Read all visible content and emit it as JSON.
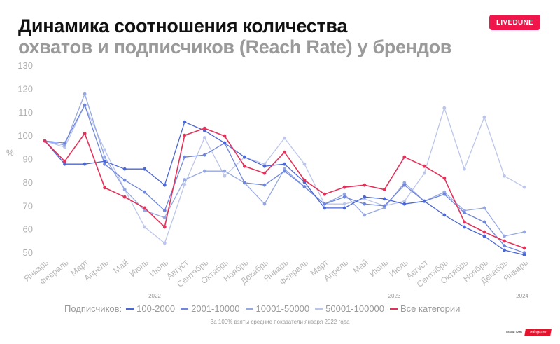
{
  "header": {
    "title_line1": "Динамика соотношения количества",
    "title_line2": "охватов и подписчиков (Reach Rate) у брендов",
    "brand_badge": "LIVEDUNE",
    "brand_color": "#f0154a"
  },
  "footer": {
    "note": "За 100% взяты средние показатели января 2022 года",
    "made_with": "Made with",
    "made_with_logo": "infogram"
  },
  "legend": {
    "label": "Подписчиков:"
  },
  "chart_data": {
    "type": "line",
    "title": "Динамика соотношения количества охватов и подписчиков (Reach Rate) у брендов",
    "xlabel": "",
    "ylabel": "%",
    "ylim": [
      50,
      130
    ],
    "yticks": [
      130,
      120,
      110,
      100,
      90,
      80,
      70,
      60,
      50
    ],
    "grid": false,
    "legend_position": "bottom",
    "categories": [
      "Январь",
      "Февраль",
      "Март",
      "Апрель",
      "Май",
      "Июнь",
      "Июль",
      "Август",
      "Сентябрь",
      "Октябрь",
      "Ноябрь",
      "Декабрь",
      "Январь",
      "Февраль",
      "Март",
      "Апрель",
      "Май",
      "Июнь",
      "Июль",
      "Август",
      "Сентябрь",
      "Октябрь",
      "Ноябрь",
      "Декабрь",
      "Январь"
    ],
    "year_labels": [
      {
        "label": "2022",
        "index": 5.5
      },
      {
        "label": "2023",
        "index": 17.5
      },
      {
        "label": "2024",
        "index": 23.9
      }
    ],
    "series": [
      {
        "name": "100-2000",
        "color": "#4a67d4",
        "values": [
          97.6,
          87.7,
          87.7,
          88.9,
          85.6,
          85.6,
          78.7,
          105.7,
          102,
          96.7,
          90.7,
          86.8,
          87.7,
          80,
          68.9,
          68.9,
          73.6,
          72.8,
          70.6,
          71.8,
          65.9,
          60.8,
          56.9,
          50.9,
          48.9
        ]
      },
      {
        "name": "2001-10000",
        "color": "#6f86dc",
        "values": [
          97.6,
          96.7,
          112.9,
          87.7,
          80.8,
          75.7,
          67.8,
          90.7,
          91.6,
          96.7,
          79.7,
          78.7,
          84.7,
          78,
          70.6,
          73.6,
          70.6,
          69.8,
          78.7,
          71.8,
          74.8,
          66.9,
          62.9,
          52.8,
          49.8
        ]
      },
      {
        "name": "10001-50000",
        "color": "#96a8e2",
        "values": [
          97.6,
          95.8,
          117.7,
          90.7,
          76.8,
          67.8,
          64.8,
          81,
          84.7,
          84.7,
          79.7,
          70.6,
          85.6,
          78,
          70.6,
          74.8,
          65.9,
          69,
          79.7,
          71.8,
          75.7,
          67.8,
          68.9,
          56.9,
          58.7
        ]
      },
      {
        "name": "50001-100000",
        "color": "#bcc6ea",
        "values": [
          97.6,
          94.9,
          112.9,
          93.8,
          76.8,
          60.8,
          53.9,
          79,
          99,
          82.6,
          90.7,
          87.7,
          98.8,
          87.7,
          70.6,
          70.6,
          72.8,
          69.8,
          71.8,
          83.8,
          111.7,
          85.6,
          107.8,
          82.6,
          77.8
        ]
      },
      {
        "name": "Все категории",
        "color": "#e3325a",
        "values": [
          97.6,
          88.9,
          100.8,
          77.6,
          73.6,
          68.9,
          60.8,
          100,
          103,
          99.7,
          86.8,
          83.8,
          92.8,
          80.8,
          74.8,
          77.8,
          78.7,
          76.8,
          90.7,
          86.8,
          81.7,
          62.9,
          58.7,
          54.8,
          51.8
        ]
      }
    ]
  }
}
